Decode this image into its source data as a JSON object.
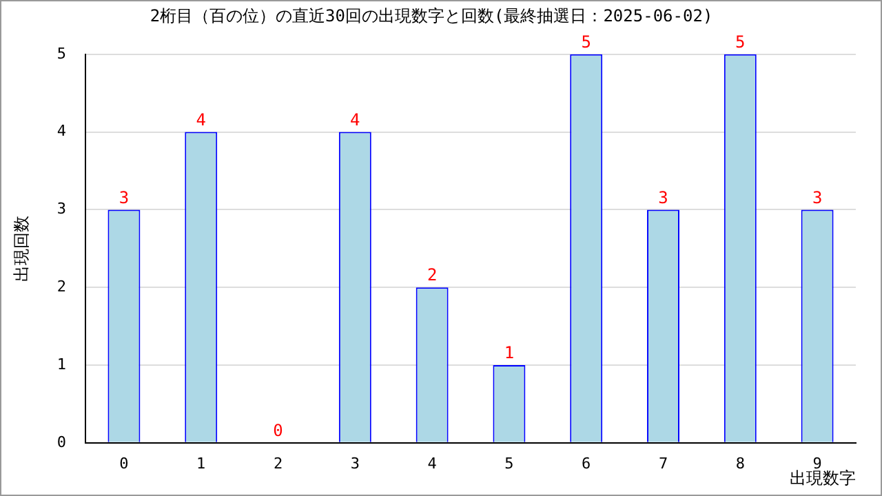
{
  "chart_data": {
    "type": "bar",
    "title": "2桁目（百の位）の直近30回の出現数字と回数(最終抽選日：2025-06-02)",
    "xlabel": "出現数字",
    "ylabel": "出現回数",
    "categories": [
      "0",
      "1",
      "2",
      "3",
      "4",
      "5",
      "6",
      "7",
      "8",
      "9"
    ],
    "values": [
      3,
      4,
      0,
      4,
      2,
      1,
      5,
      3,
      5,
      3
    ],
    "color": "#add8e6",
    "ylim": [
      0,
      5
    ],
    "yticks": [
      0,
      1,
      2,
      3,
      4,
      5
    ],
    "grid": "y",
    "data_labels": true,
    "legend": false
  }
}
